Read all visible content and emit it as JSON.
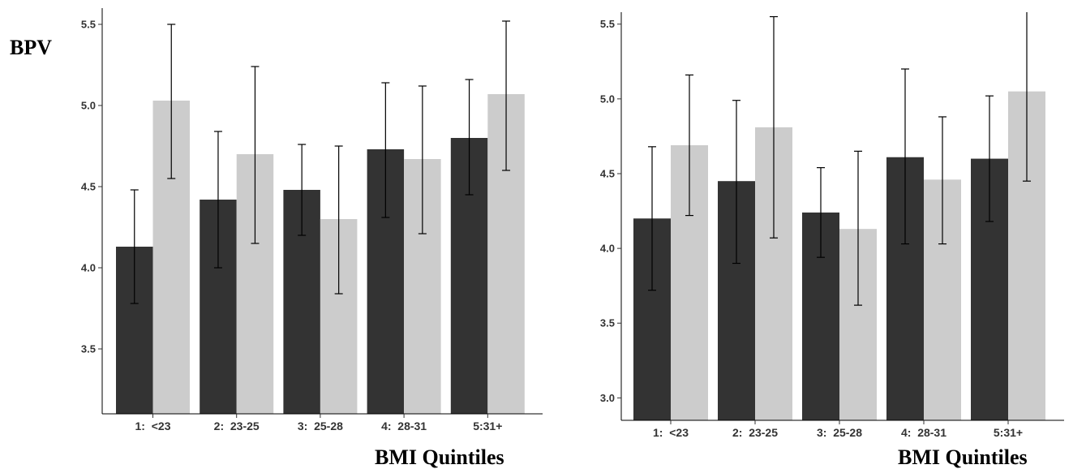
{
  "y_axis_label": "BPV",
  "chart_data": [
    {
      "type": "bar",
      "xlabel": "BMI Quintiles",
      "ylabel": "BPV",
      "categories": [
        "1:  <23",
        "2:  23-25",
        "3:  25-28",
        "4:  28-31",
        "5:31+"
      ],
      "ylim": [
        3.1,
        5.6
      ],
      "yticks": [
        3.5,
        4.0,
        4.5,
        5.0,
        5.5
      ],
      "ytick_labels": [
        "3.5",
        "4.0",
        "4.5",
        "5.0",
        "5.5"
      ],
      "grid": false,
      "series": [
        {
          "color": "#333333",
          "values": [
            4.13,
            4.42,
            4.48,
            4.73,
            4.8
          ],
          "err_low": [
            3.78,
            4.0,
            4.2,
            4.31,
            4.45
          ],
          "err_high": [
            4.48,
            4.84,
            4.76,
            5.14,
            5.16
          ]
        },
        {
          "color": "#cccccc",
          "values": [
            5.03,
            4.7,
            4.3,
            4.67,
            5.07
          ],
          "err_low": [
            4.55,
            4.15,
            3.84,
            4.21,
            4.6
          ],
          "err_high": [
            5.5,
            5.24,
            4.75,
            5.12,
            5.52
          ]
        }
      ]
    },
    {
      "type": "bar",
      "xlabel": "BMI Quintiles",
      "ylabel": "",
      "categories": [
        "1:  <23",
        "2:  23-25",
        "3:  25-28",
        "4:  28-31",
        "5:31+"
      ],
      "ylim": [
        2.85,
        5.58
      ],
      "yticks": [
        3.0,
        3.5,
        4.0,
        4.5,
        5.0,
        5.5
      ],
      "ytick_labels": [
        "3.0",
        "3.5",
        "4.0",
        "4.5",
        "5.0",
        "5.5"
      ],
      "grid": false,
      "series": [
        {
          "color": "#333333",
          "values": [
            4.2,
            4.45,
            4.24,
            4.61,
            4.6
          ],
          "err_low": [
            3.72,
            3.9,
            3.94,
            4.03,
            4.18
          ],
          "err_high": [
            4.68,
            4.99,
            4.54,
            5.2,
            5.02
          ]
        },
        {
          "color": "#cccccc",
          "values": [
            4.69,
            4.81,
            4.13,
            4.46,
            5.05
          ],
          "err_low": [
            4.22,
            4.07,
            3.62,
            4.03,
            4.45
          ],
          "err_high": [
            5.16,
            5.55,
            4.65,
            4.88,
            5.6
          ]
        }
      ]
    }
  ]
}
